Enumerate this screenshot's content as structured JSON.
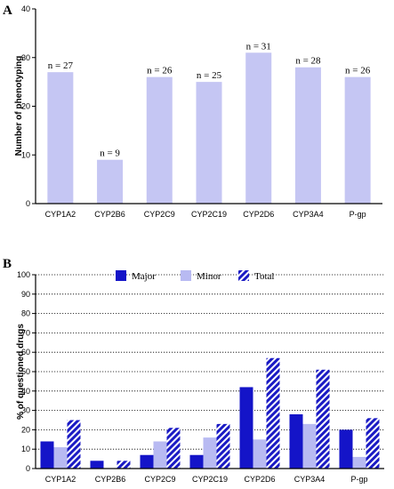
{
  "panels": {
    "a_letter": "A",
    "b_letter": "B"
  },
  "colors": {
    "light": "#c5c6f3",
    "major": "#1414c8",
    "minor": "#b8baf2",
    "total": "#1a1ac4"
  },
  "chart_data": [
    {
      "type": "bar",
      "categories": [
        "CYP1A2",
        "CYP2B6",
        "CYP2C9",
        "CYP2C19",
        "CYP2D6",
        "CYP3A4",
        "P-gp"
      ],
      "values": [
        27,
        9,
        26,
        25,
        31,
        28,
        26
      ],
      "data_labels": [
        "n = 27",
        "n = 9",
        "n = 26",
        "n = 25",
        "n = 31",
        "n = 28",
        "n = 26"
      ],
      "title": "",
      "xlabel": "",
      "ylabel": "Number of phenotyping",
      "ylim": [
        0,
        40
      ],
      "yticks": [
        "0",
        "10",
        "20",
        "30",
        "40"
      ],
      "grid": false
    },
    {
      "type": "bar",
      "categories": [
        "CYP1A2",
        "CYP2B6",
        "CYP2C9",
        "CYP2C19",
        "CYP2D6",
        "CYP3A4",
        "P-gp"
      ],
      "series": [
        {
          "name": "Major",
          "values": [
            14,
            4,
            7,
            7,
            42,
            28,
            20
          ]
        },
        {
          "name": "Minor",
          "values": [
            11,
            0,
            14,
            16,
            15,
            23,
            6
          ]
        },
        {
          "name": "Total",
          "values": [
            25,
            4,
            21,
            23,
            57,
            51,
            26
          ]
        }
      ],
      "title": "",
      "xlabel": "",
      "ylabel": "% of questioned drugs",
      "ylim": [
        0,
        100
      ],
      "yticks": [
        "0",
        "10",
        "20",
        "30",
        "40",
        "50",
        "60",
        "70",
        "80",
        "90",
        "100"
      ],
      "grid": true,
      "legend_position": "top"
    }
  ]
}
